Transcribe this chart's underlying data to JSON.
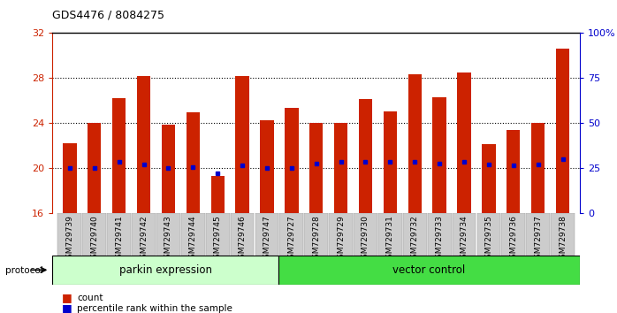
{
  "title": "GDS4476 / 8084275",
  "samples": [
    "GSM729739",
    "GSM729740",
    "GSM729741",
    "GSM729742",
    "GSM729743",
    "GSM729744",
    "GSM729745",
    "GSM729746",
    "GSM729747",
    "GSM729727",
    "GSM729728",
    "GSM729729",
    "GSM729730",
    "GSM729731",
    "GSM729732",
    "GSM729733",
    "GSM729734",
    "GSM729735",
    "GSM729736",
    "GSM729737",
    "GSM729738"
  ],
  "count_values": [
    22.2,
    24.0,
    26.2,
    28.2,
    23.8,
    24.9,
    19.3,
    28.2,
    24.2,
    25.3,
    24.0,
    24.0,
    26.1,
    25.0,
    28.3,
    26.3,
    28.5,
    22.1,
    23.4,
    24.0,
    30.6
  ],
  "percentile_values": [
    20.0,
    20.0,
    20.5,
    20.3,
    20.0,
    20.1,
    19.5,
    20.2,
    20.0,
    20.0,
    20.4,
    20.5,
    20.5,
    20.5,
    20.5,
    20.4,
    20.5,
    20.3,
    20.2,
    20.3,
    20.8
  ],
  "group1_count": 9,
  "group2_count": 12,
  "group1_label": "parkin expression",
  "group2_label": "vector control",
  "protocol_label": "protocol",
  "ylim_left": [
    16,
    32
  ],
  "ylim_right": [
    0,
    100
  ],
  "yticks_left": [
    16,
    20,
    24,
    28,
    32
  ],
  "yticks_right": [
    0,
    25,
    50,
    75,
    100
  ],
  "bar_color": "#cc2200",
  "dot_color": "#0000cc",
  "group1_bg": "#ccffcc",
  "group2_bg": "#44dd44",
  "xticklabel_bg": "#cccccc",
  "dotgrid_ticks": [
    20,
    24,
    28
  ]
}
